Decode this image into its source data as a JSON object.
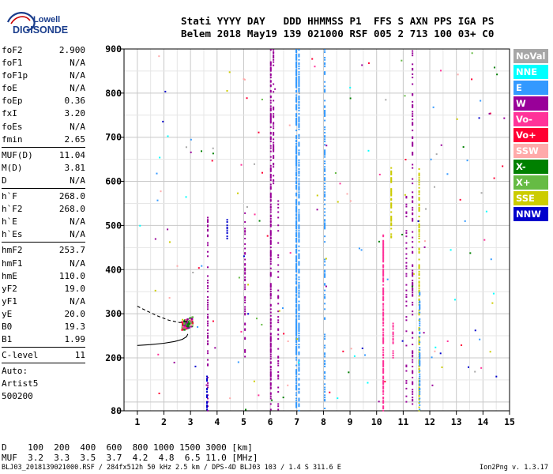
{
  "logo": {
    "line1": "Lowell",
    "line2": "DIGISONDE"
  },
  "header": {
    "labels": "Stati YYYY DAY   DDD HHMMSS P1  FFS S AXN PPS IGA PS",
    "values": "Belem 2018 May19 139 021000 RSF 005 2 713 100 03+ C0"
  },
  "params": [
    [
      {
        "name": "foF2",
        "value": "2.900"
      },
      {
        "name": "foF1",
        "value": "N/A"
      },
      {
        "name": "foF1p",
        "value": "N/A"
      },
      {
        "name": "foE",
        "value": "N/A"
      },
      {
        "name": "foEp",
        "value": "0.36"
      },
      {
        "name": "fxI",
        "value": "3.20"
      },
      {
        "name": "foEs",
        "value": "N/A"
      },
      {
        "name": "fmin",
        "value": "2.65"
      }
    ],
    [
      {
        "name": "MUF(D)",
        "value": "11.04"
      },
      {
        "name": "M(D)",
        "value": "3.81"
      },
      {
        "name": "D",
        "value": "N/A"
      }
    ],
    [
      {
        "name": "h`F",
        "value": "268.0"
      },
      {
        "name": "h`F2",
        "value": "268.0"
      },
      {
        "name": "h`E",
        "value": "N/A"
      },
      {
        "name": "h`Es",
        "value": "N/A"
      }
    ],
    [
      {
        "name": "hmF2",
        "value": "253.7"
      },
      {
        "name": "hmF1",
        "value": "N/A"
      },
      {
        "name": "hmE",
        "value": "110.0"
      },
      {
        "name": "yF2",
        "value": "19.0"
      },
      {
        "name": "yF1",
        "value": "N/A"
      },
      {
        "name": "yE",
        "value": "20.0"
      },
      {
        "name": "B0",
        "value": "19.3"
      },
      {
        "name": "B1",
        "value": "1.99"
      }
    ],
    [
      {
        "name": "C-level",
        "value": "11"
      }
    ],
    [
      {
        "name": "Auto:",
        "value": ""
      },
      {
        "name": "Artist5",
        "value": ""
      },
      {
        "name": "500200",
        "value": ""
      }
    ]
  ],
  "legend": [
    {
      "label": "NoVal",
      "color": "#a6a6a6"
    },
    {
      "label": "NNE",
      "color": "#00ffff"
    },
    {
      "label": "E",
      "color": "#3399ff"
    },
    {
      "label": "W",
      "color": "#990099"
    },
    {
      "label": "Vo-",
      "color": "#ff3399"
    },
    {
      "label": "Vo+",
      "color": "#ff0033"
    },
    {
      "label": "SSW",
      "color": "#ffaaaa"
    },
    {
      "label": "X-",
      "color": "#008000"
    },
    {
      "label": "X+",
      "color": "#66bb44"
    },
    {
      "label": "SSE",
      "color": "#cccc00"
    },
    {
      "label": "NNW",
      "color": "#0000cc"
    }
  ],
  "muf_table": {
    "d_line": "D    100  200  400  600  800 1000 1500 3000 [km]",
    "muf_line": "MUF  3.2  3.3  3.5  3.7  4.2  4.8  6.5 11.0 [MHz]"
  },
  "footer": {
    "left": "BLJ03_2018139021000.RSF / 284fx512h 50 kHz 2.5 km / DPS-4D BLJ03 103 / 1.4 S 311.6 E",
    "right": "Ion2Png v. 1.3.17"
  },
  "chart_data": {
    "type": "scatter",
    "xlabel": "",
    "ylabel": "",
    "xlim": [
      0.5,
      15
    ],
    "ylim": [
      80,
      900
    ],
    "xticks": [
      1,
      2,
      3,
      4,
      5,
      6,
      7,
      8,
      9,
      10,
      11,
      12,
      13,
      14,
      15
    ],
    "yticks": [
      80,
      200,
      300,
      400,
      500,
      600,
      700,
      800,
      900
    ],
    "grid": true,
    "trace_solid": [
      [
        2.9,
        254
      ],
      [
        2.85,
        248
      ],
      [
        2.7,
        242
      ],
      [
        2.4,
        237
      ],
      [
        2.0,
        233
      ],
      [
        1.5,
        230
      ],
      [
        1.0,
        228
      ]
    ],
    "trace_dashed": [
      [
        1.0,
        317
      ],
      [
        1.4,
        305
      ],
      [
        1.8,
        294
      ],
      [
        2.2,
        285
      ],
      [
        2.6,
        280
      ],
      [
        2.9,
        283
      ]
    ],
    "vertical_streaks": [
      {
        "x": 6.02,
        "y0": 80,
        "y1": 900,
        "color": "#990099",
        "density": 0.55
      },
      {
        "x": 6.12,
        "y0": 580,
        "y1": 900,
        "color": "#990099",
        "density": 0.3
      },
      {
        "x": 6.3,
        "y0": 80,
        "y1": 560,
        "color": "#990099",
        "density": 0.25
      },
      {
        "x": 6.98,
        "y0": 80,
        "y1": 900,
        "color": "#3399ff",
        "density": 0.7
      },
      {
        "x": 7.08,
        "y0": 80,
        "y1": 900,
        "color": "#3399ff",
        "density": 0.55
      },
      {
        "x": 8.05,
        "y0": 80,
        "y1": 900,
        "color": "#3399ff",
        "density": 0.35
      },
      {
        "x": 10.25,
        "y0": 80,
        "y1": 480,
        "color": "#ff3399",
        "density": 0.7
      },
      {
        "x": 10.55,
        "y0": 470,
        "y1": 640,
        "color": "#cccc00",
        "density": 0.6
      },
      {
        "x": 10.62,
        "y0": 200,
        "y1": 280,
        "color": "#ff3399",
        "density": 0.5
      },
      {
        "x": 11.35,
        "y0": 80,
        "y1": 900,
        "color": "#990099",
        "density": 0.3
      },
      {
        "x": 11.6,
        "y0": 80,
        "y1": 650,
        "color": "#cccc00",
        "density": 0.5
      },
      {
        "x": 11.62,
        "y0": 80,
        "y1": 350,
        "color": "#3399ff",
        "density": 0.45
      },
      {
        "x": 11.12,
        "y0": 80,
        "y1": 600,
        "color": "#990099",
        "density": 0.2
      },
      {
        "x": 3.65,
        "y0": 80,
        "y1": 520,
        "color": "#990099",
        "density": 0.35
      },
      {
        "x": 3.62,
        "y0": 80,
        "y1": 160,
        "color": "#0000cc",
        "density": 0.5
      },
      {
        "x": 4.38,
        "y0": 470,
        "y1": 520,
        "color": "#0000cc",
        "density": 0.6
      },
      {
        "x": 5.05,
        "y0": 200,
        "y1": 540,
        "color": "#990099",
        "density": 0.25
      }
    ]
  }
}
